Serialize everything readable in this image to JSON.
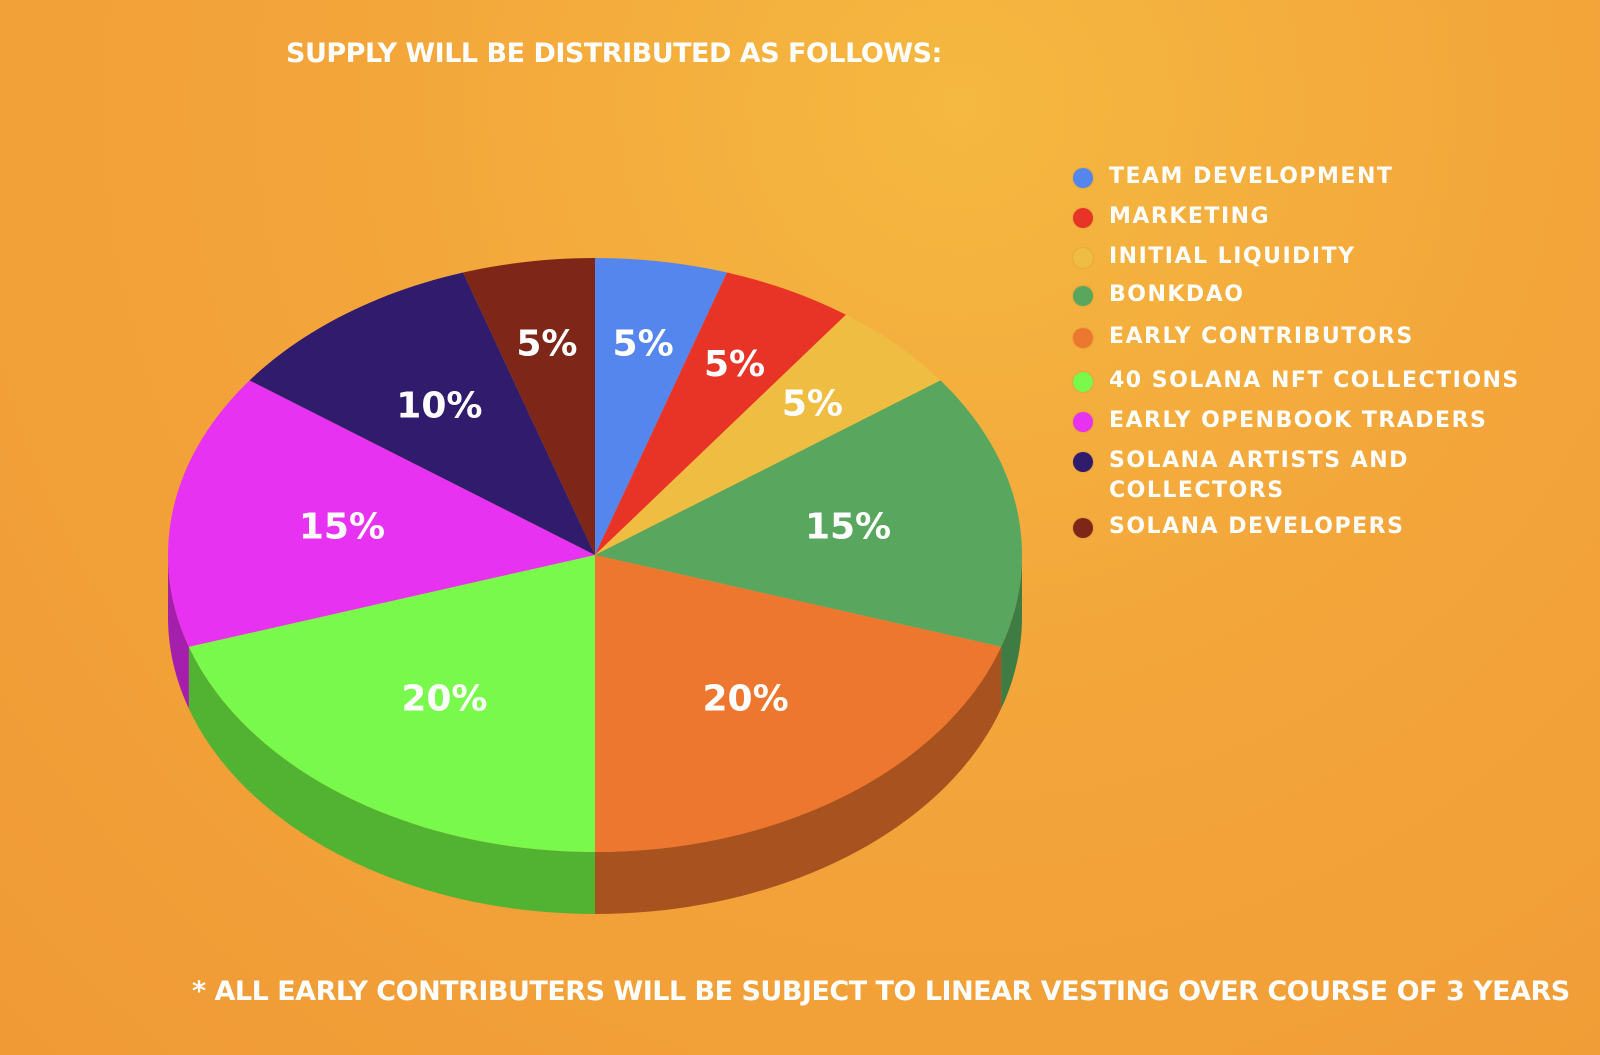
{
  "title": "SUPPLY WILL BE DISTRIBUTED AS FOLLOWS:",
  "footnote": "* ALL EARLY CONTRIBUTERS WILL BE SUBJECT TO LINEAR VESTING OVER COURSE OF 3 YEARS",
  "chart_data": {
    "type": "pie",
    "title": "SUPPLY WILL BE DISTRIBUTED AS FOLLOWS:",
    "legend_position": "right",
    "slices": [
      {
        "label": "TEAM DEVELOPMENT",
        "value": 5,
        "value_label": "5%",
        "color": "#5486ee",
        "side_color": "#3d64b8"
      },
      {
        "label": "MARKETING",
        "value": 5,
        "value_label": "5%",
        "color": "#e83427",
        "side_color": "#b0271d"
      },
      {
        "label": "INITIAL LIQUIDITY",
        "value": 5,
        "value_label": "5%",
        "color": "#f0bd43",
        "side_color": "#bf9030"
      },
      {
        "label": "BONKDAO",
        "value": 15,
        "value_label": "15%",
        "color": "#59a75e",
        "side_color": "#3e7c44"
      },
      {
        "label": "EARLY CONTRIBUTORS",
        "value": 20,
        "value_label": "20%",
        "color": "#ee7730",
        "side_color": "#a8531f"
      },
      {
        "label": "40 SOLANA NFT COLLECTIONS",
        "value": 20,
        "value_label": "20%",
        "color": "#79f94b",
        "side_color": "#52b333"
      },
      {
        "label": "EARLY OPENBOOK TRADERS",
        "value": 15,
        "value_label": "15%",
        "color": "#e832f2",
        "side_color": "#a420ac"
      },
      {
        "label": "SOLANA ARTISTS AND COLLECTORS",
        "value": 10,
        "value_label": "10%",
        "color": "#301b6c",
        "side_color": "#21124c"
      },
      {
        "label": "SOLANA DEVELOPERS",
        "value": 5,
        "value_label": "5%",
        "color": "#7e2718",
        "side_color": "#5a1b10"
      }
    ]
  }
}
